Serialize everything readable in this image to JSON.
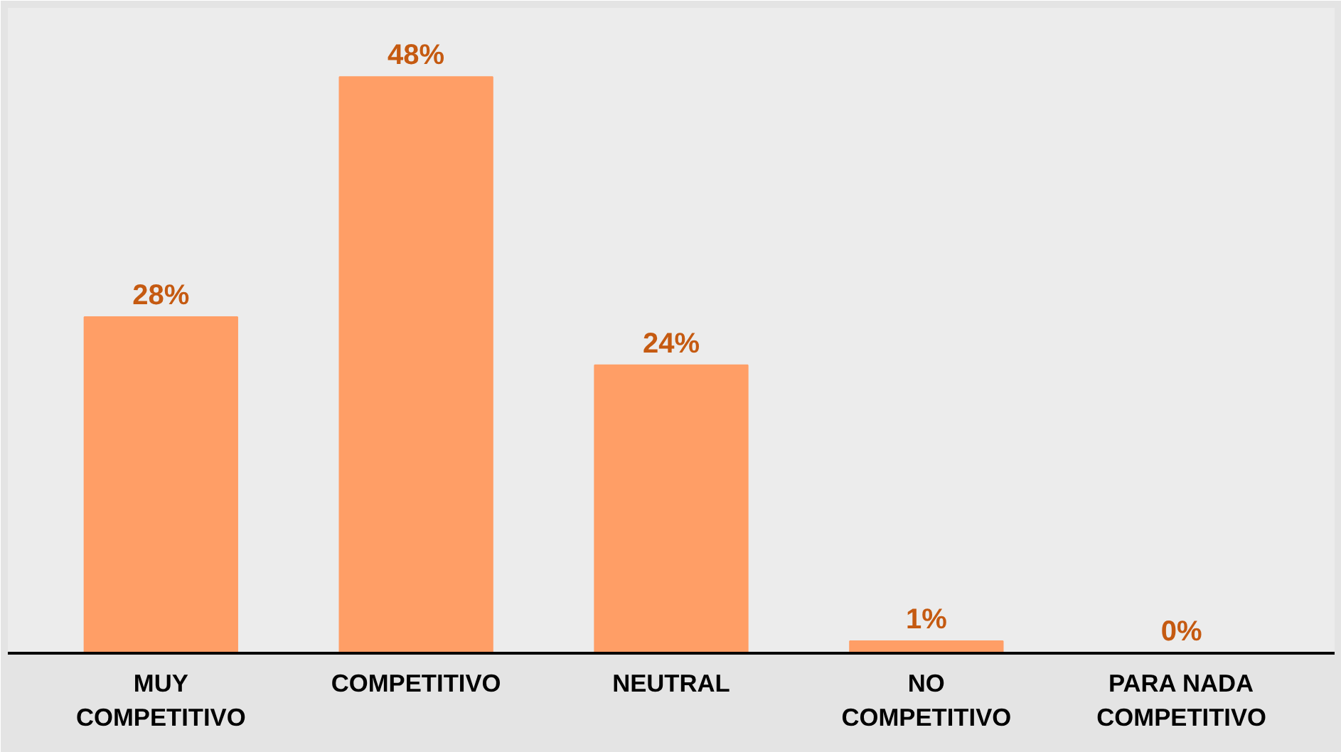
{
  "chart_data": {
    "type": "bar",
    "categories": [
      "MUY COMPETITIVO",
      "COMPETITIVO",
      "NEUTRAL",
      "NO COMPETITIVO",
      "PARA NADA COMPETITIVO"
    ],
    "values": [
      28,
      48,
      24,
      1,
      0
    ],
    "value_labels": [
      "28%",
      "48%",
      "24%",
      "1%",
      "0%"
    ],
    "color": "#ff9e66",
    "grid": false
  }
}
